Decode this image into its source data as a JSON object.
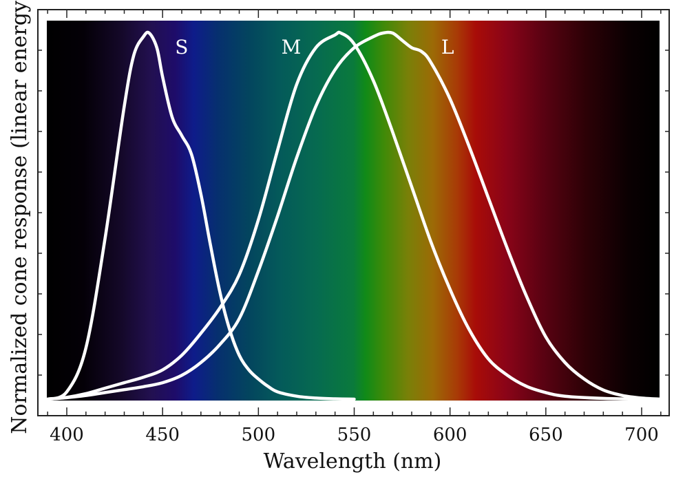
{
  "chart_data": {
    "type": "line",
    "title": "",
    "xlabel": "Wavelength (nm)",
    "ylabel": "Normalized cone response (linear energy)",
    "xlim": [
      388,
      710
    ],
    "ylim": [
      0,
      1
    ],
    "x_ticks": [
      400,
      450,
      500,
      550,
      600,
      650,
      700
    ],
    "grid": false,
    "legend": "none",
    "background": "visible spectrum gradient",
    "series": [
      {
        "name": "S",
        "peak_nm": 442,
        "x": [
          390,
          400,
          410,
          420,
          430,
          435,
          440,
          443,
          447,
          450,
          455,
          460,
          465,
          470,
          475,
          480,
          485,
          490,
          495,
          500,
          505,
          510,
          520,
          530,
          540,
          550
        ],
        "y": [
          0.0,
          0.02,
          0.14,
          0.44,
          0.8,
          0.94,
          0.99,
          1.0,
          0.96,
          0.88,
          0.77,
          0.72,
          0.67,
          0.56,
          0.42,
          0.29,
          0.19,
          0.12,
          0.08,
          0.055,
          0.035,
          0.02,
          0.008,
          0.003,
          0.001,
          0.0
        ]
      },
      {
        "name": "M",
        "peak_nm": 543,
        "x": [
          390,
          400,
          410,
          420,
          430,
          440,
          450,
          460,
          470,
          480,
          490,
          500,
          510,
          520,
          530,
          540,
          543,
          550,
          560,
          570,
          580,
          590,
          600,
          610,
          620,
          630,
          640,
          650,
          660,
          680,
          700,
          710
        ],
        "y": [
          0.0,
          0.005,
          0.015,
          0.03,
          0.045,
          0.06,
          0.08,
          0.12,
          0.18,
          0.25,
          0.34,
          0.49,
          0.68,
          0.86,
          0.96,
          0.995,
          1.0,
          0.97,
          0.87,
          0.73,
          0.58,
          0.43,
          0.3,
          0.19,
          0.11,
          0.065,
          0.035,
          0.018,
          0.008,
          0.002,
          0.0,
          0.0
        ]
      },
      {
        "name": "L",
        "peak_nm": 570,
        "x": [
          390,
          400,
          410,
          420,
          430,
          440,
          450,
          460,
          470,
          480,
          490,
          500,
          510,
          520,
          530,
          540,
          550,
          560,
          565,
          570,
          575,
          580,
          585,
          590,
          600,
          610,
          620,
          630,
          640,
          650,
          660,
          670,
          680,
          690,
          700,
          710
        ],
        "y": [
          0.0,
          0.004,
          0.01,
          0.018,
          0.026,
          0.034,
          0.045,
          0.065,
          0.1,
          0.15,
          0.22,
          0.35,
          0.5,
          0.66,
          0.8,
          0.9,
          0.96,
          0.99,
          1.0,
          1.0,
          0.98,
          0.96,
          0.95,
          0.92,
          0.82,
          0.69,
          0.55,
          0.41,
          0.28,
          0.17,
          0.1,
          0.055,
          0.025,
          0.01,
          0.003,
          0.0
        ]
      }
    ]
  }
}
